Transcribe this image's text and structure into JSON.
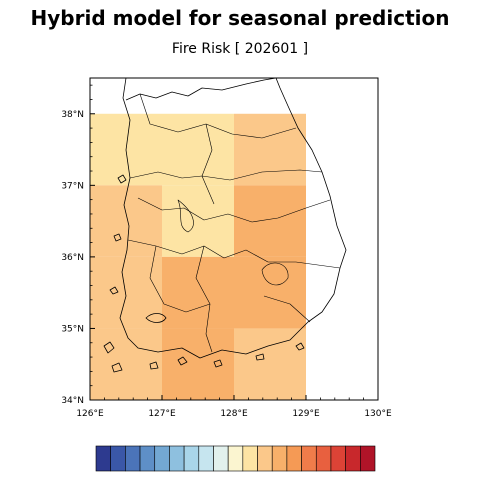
{
  "title": "Hybrid model for seasonal prediction",
  "subtitle": "Fire Risk [ 202601 ]",
  "map": {
    "lon_range": [
      126,
      130
    ],
    "lat_range": [
      34,
      38.5
    ],
    "lon_ticks": [
      "126°E",
      "127°E",
      "128°E",
      "129°E",
      "130°E"
    ],
    "lat_ticks": [
      "34°N",
      "35°N",
      "36°N",
      "37°N",
      "38°N"
    ],
    "cells": [
      {
        "lon": 126.5,
        "lat": 37.5,
        "color": "#fde4a4"
      },
      {
        "lon": 127.5,
        "lat": 37.5,
        "color": "#fde4a4"
      },
      {
        "lon": 128.5,
        "lat": 37.5,
        "color": "#fbc88a"
      },
      {
        "lon": 126.5,
        "lat": 36.5,
        "color": "#fbc88a"
      },
      {
        "lon": 127.5,
        "lat": 36.5,
        "color": "#fde4a4"
      },
      {
        "lon": 128.5,
        "lat": 36.5,
        "color": "#f8b06a"
      },
      {
        "lon": 126.5,
        "lat": 35.5,
        "color": "#fbc88a"
      },
      {
        "lon": 127.5,
        "lat": 35.5,
        "color": "#f8b06a"
      },
      {
        "lon": 128.5,
        "lat": 35.5,
        "color": "#f8b06a"
      },
      {
        "lon": 126.5,
        "lat": 34.5,
        "color": "#fbc88a"
      },
      {
        "lon": 127.5,
        "lat": 34.5,
        "color": "#f8b06a"
      },
      {
        "lon": 128.5,
        "lat": 34.5,
        "color": "#fbc88a"
      }
    ]
  },
  "colorbar": {
    "colors": [
      "#2d3a8f",
      "#3a57a8",
      "#4b74b9",
      "#5e8fc7",
      "#73a8d3",
      "#8ec0df",
      "#a9d5e9",
      "#c6e5ef",
      "#e2f1ed",
      "#fbf5d0",
      "#fde4a4",
      "#fbc88a",
      "#f8b06a",
      "#f59a55",
      "#f07c4a",
      "#e8603f",
      "#dc4336",
      "#c8282c",
      "#b01428"
    ]
  }
}
